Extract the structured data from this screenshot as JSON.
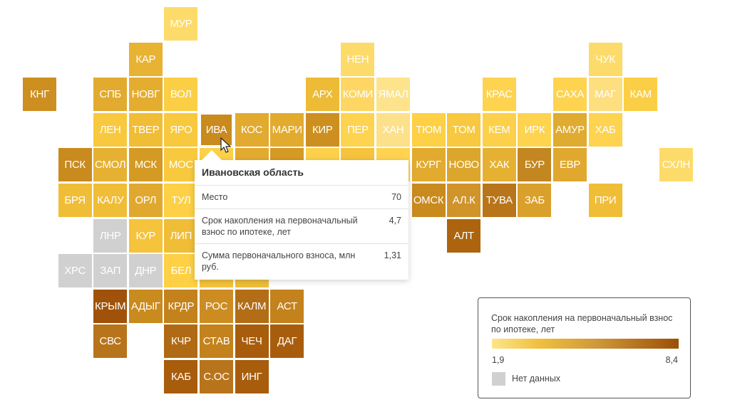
{
  "chart_data": {
    "type": "heatmap",
    "subtype": "tile-grid-map",
    "tiles": [
      {
        "label": "МУР",
        "color": "#fddb6a"
      },
      {
        "label": "КАР",
        "color": "#e8b232"
      },
      {
        "label": "НЕН",
        "color": "#fddb6a"
      },
      {
        "label": "ЧУК",
        "color": "#fddb6a"
      },
      {
        "label": "КНГ",
        "color": "#cc8f20"
      },
      {
        "label": "СПБ",
        "color": "#e2aa2e"
      },
      {
        "label": "НОВГ",
        "color": "#e4ad30"
      },
      {
        "label": "ВОЛ",
        "color": "#fbcf45"
      },
      {
        "label": "АРХ",
        "color": "#edbb35"
      },
      {
        "label": "КОМИ",
        "color": "#fdd663"
      },
      {
        "label": "ЯМАЛ",
        "color": "#fde38c"
      },
      {
        "label": "КРАС",
        "color": "#fdd350"
      },
      {
        "label": "САХА",
        "color": "#fdd350"
      },
      {
        "label": "МАГ",
        "color": "#fddf80"
      },
      {
        "label": "КАМ",
        "color": "#fbcf45"
      },
      {
        "label": "ЛЕН",
        "color": "#f8c93e"
      },
      {
        "label": "ТВЕР",
        "color": "#f0bd37"
      },
      {
        "label": "ЯРО",
        "color": "#f8c93e"
      },
      {
        "label": "ИВА",
        "color": "#c98a1e"
      },
      {
        "label": "КОС",
        "color": "#e2aa2e"
      },
      {
        "label": "МАРИ",
        "color": "#e2aa2e"
      },
      {
        "label": "КИР",
        "color": "#cc8f20"
      },
      {
        "label": "ПЕР",
        "color": "#fdd350"
      },
      {
        "label": "ХАН",
        "color": "#fde08a"
      },
      {
        "label": "ТЮМ",
        "color": "#fdd045"
      },
      {
        "label": "ТОМ",
        "color": "#f7c840"
      },
      {
        "label": "КЕМ",
        "color": "#fcd04a"
      },
      {
        "label": "ИРК",
        "color": "#fdd350"
      },
      {
        "label": "АМУР",
        "color": "#dfab30"
      },
      {
        "label": "ХАБ",
        "color": "#fdd350"
      },
      {
        "label": "ПСК",
        "color": "#c98a1e"
      },
      {
        "label": "СМОЛ",
        "color": "#e6b032"
      },
      {
        "label": "МСК",
        "color": "#d59a24"
      },
      {
        "label": "МОС",
        "color": "#f8c93e"
      },
      {
        "label": "КУРГ",
        "color": "#e2aa2e"
      },
      {
        "label": "НОВО",
        "color": "#dca52c"
      },
      {
        "label": "ХАК",
        "color": "#e6b032"
      },
      {
        "label": "БУР",
        "color": "#c38620"
      },
      {
        "label": "ЕВР",
        "color": "#e0a82e"
      },
      {
        "label": "СХЛН",
        "color": "#fddb6a"
      },
      {
        "label": "БРЯ",
        "color": "#f0bd37"
      },
      {
        "label": "КАЛУ",
        "color": "#f0bd37"
      },
      {
        "label": "ОРЛ",
        "color": "#e0a82e"
      },
      {
        "label": "ТУЛ",
        "color": "#fdd045"
      },
      {
        "label": "ОМСК",
        "color": "#c98a1e"
      },
      {
        "label": "АЛ.К",
        "color": "#d0942a"
      },
      {
        "label": "ТУВА",
        "color": "#b8751a"
      },
      {
        "label": "ЗАБ",
        "color": "#daa02c"
      },
      {
        "label": "ПРИ",
        "color": "#f0bd37"
      },
      {
        "label": "ЛНР",
        "color": "#d0d0d0"
      },
      {
        "label": "КУР",
        "color": "#f5c33c"
      },
      {
        "label": "ЛИП",
        "color": "#f0bd37"
      },
      {
        "label": "АЛТ",
        "color": "#ad640e"
      },
      {
        "label": "ХРС",
        "color": "#d0d0d0"
      },
      {
        "label": "ЗАП",
        "color": "#d0d0d0"
      },
      {
        "label": "ДНР",
        "color": "#d0d0d0"
      },
      {
        "label": "БЕЛ",
        "color": "#fdd045"
      },
      {
        "label": "КРЫМ",
        "color": "#a0520a"
      },
      {
        "label": "АДЫГ",
        "color": "#c98a1e"
      },
      {
        "label": "КРДР",
        "color": "#c3821c"
      },
      {
        "label": "РОС",
        "color": "#cd8c22"
      },
      {
        "label": "КАЛМ",
        "color": "#b36d16"
      },
      {
        "label": "АСТ",
        "color": "#c3821c"
      },
      {
        "label": "СВС",
        "color": "#b8741a"
      },
      {
        "label": "КЧР",
        "color": "#b06a14"
      },
      {
        "label": "СТАВ",
        "color": "#c3821c"
      },
      {
        "label": "ЧЕЧ",
        "color": "#a85d0c"
      },
      {
        "label": "ДАГ",
        "color": "#a85d0c"
      },
      {
        "label": "КАБ",
        "color": "#a85d0c"
      },
      {
        "label": "С.ОС",
        "color": "#b8741a"
      },
      {
        "label": "ИНГ",
        "color": "#a85d0c"
      }
    ],
    "occluded_tile_colors": [
      "#fcd04a",
      "#e2aa2e",
      "#d59a24",
      "#fcd04a",
      "#f5c33c",
      "#fdd350",
      "#f5c33c",
      "#efbf3a"
    ],
    "highlighted": "ИВА",
    "color_scale": {
      "min": 1.9,
      "max": 8.4,
      "min_label": "1,9",
      "max_label": "8,4",
      "min_color": "#fde58a",
      "max_color": "#9c4f05"
    },
    "no_data_color": "#d0d0d0"
  },
  "tooltip": {
    "title": "Ивановская область",
    "rows": [
      {
        "label": "Место",
        "value": "70"
      },
      {
        "label": "Срок накопления на первоначальный взнос по ипотеке, лет",
        "value": "4,7"
      },
      {
        "label": "Сумма первоначального взноса, млн руб.",
        "value": "1,31"
      }
    ]
  },
  "legend": {
    "title": "Срок накопления на первоначальный взнос по ипотеке, лет",
    "min_label": "1,9",
    "max_label": "8,4",
    "no_data_label": "Нет данных"
  }
}
